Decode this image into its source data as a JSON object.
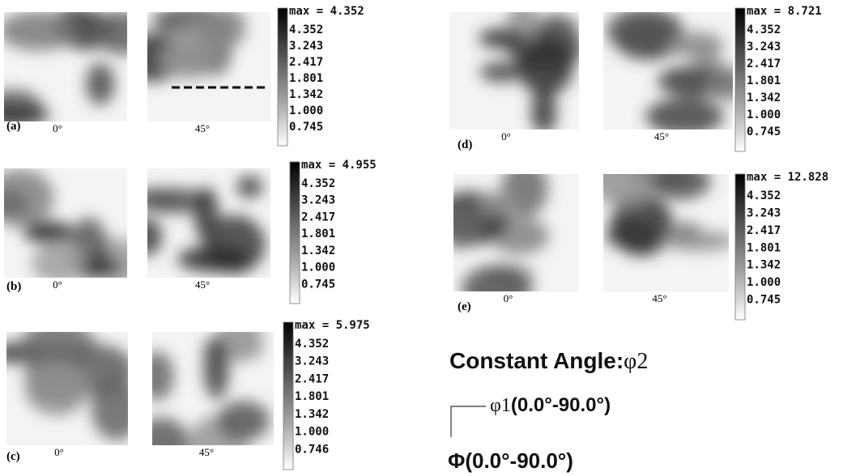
{
  "panels": [
    {
      "label": "(a)",
      "angles": [
        "0°",
        "45°"
      ],
      "max": "max = 4.352",
      "scale": [
        "4.352",
        "3.243",
        "2.417",
        "1.801",
        "1.342",
        "1.000",
        "0.745"
      ]
    },
    {
      "label": "(b)",
      "angles": [
        "0°",
        "45°"
      ],
      "max": "max = 4.955",
      "scale": [
        "4.352",
        "3.243",
        "2.417",
        "1.801",
        "1.342",
        "1.000",
        "0.745"
      ]
    },
    {
      "label": "(c)",
      "angles": [
        "0°",
        "45°"
      ],
      "max": "max = 5.975",
      "scale": [
        "4.352",
        "3.243",
        "2.417",
        "1.801",
        "1.342",
        "1.000",
        "0.746"
      ]
    },
    {
      "label": "(d)",
      "angles": [
        "0°",
        "45°"
      ],
      "max": "max = 8.721",
      "scale": [
        "4.352",
        "3.243",
        "2.417",
        "1.801",
        "1.342",
        "1.000",
        "0.745"
      ]
    },
    {
      "label": "(e)",
      "angles": [
        "0°",
        "45°"
      ],
      "max": "max = 12.828",
      "scale": [
        "4.352",
        "3.243",
        "2.417",
        "1.801",
        "1.342",
        "1.000",
        "0.745"
      ]
    }
  ],
  "legend": {
    "title": "Constant Angle:",
    "title_symbol": "φ2",
    "phi1": "φ1",
    "phi1_range": "(0.0°-90.0°)",
    "Phi": "Φ(0.0°-90.0°)"
  }
}
